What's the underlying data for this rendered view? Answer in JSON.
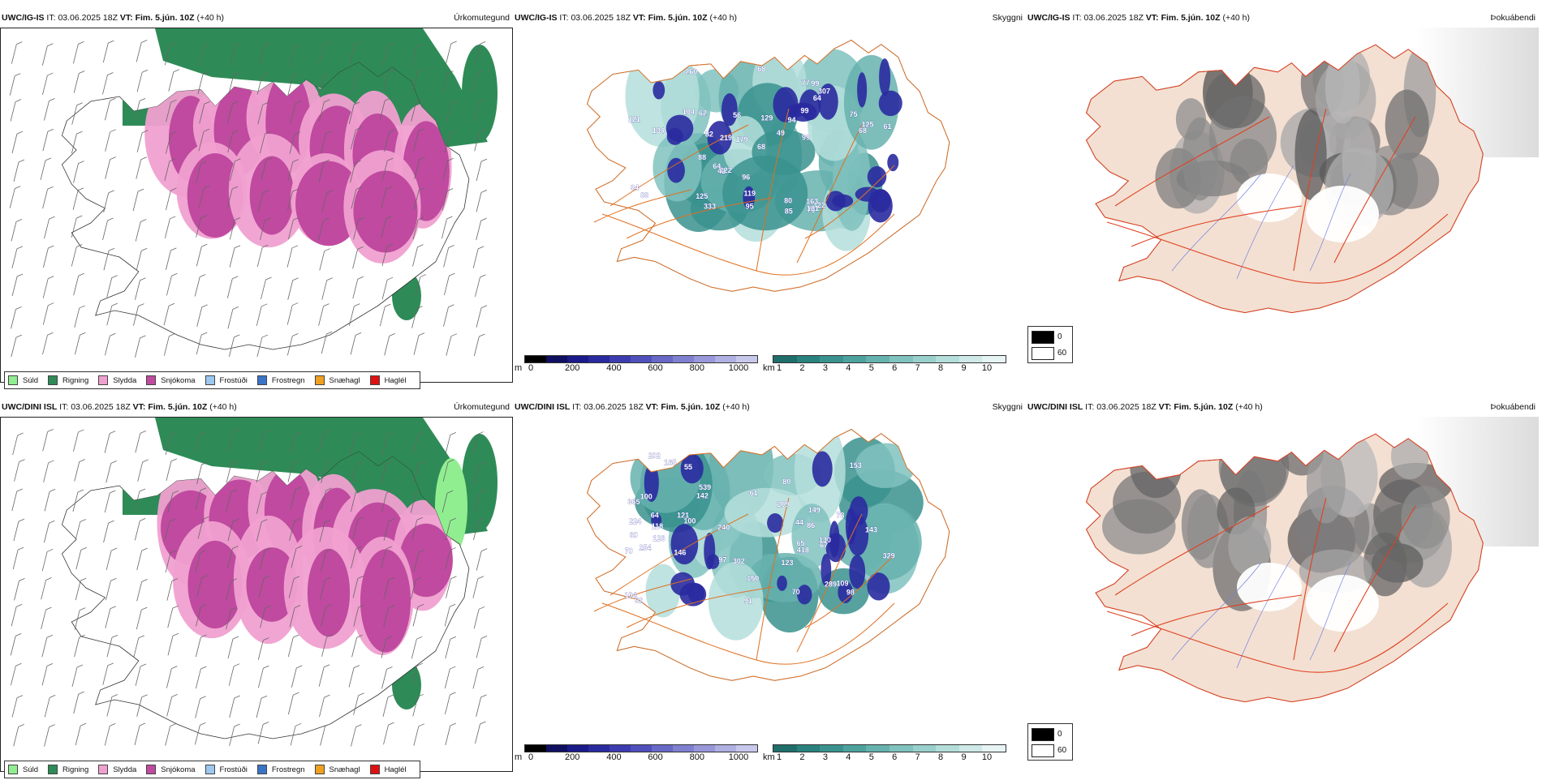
{
  "rows": [
    {
      "model": "UWC/IG-IS",
      "it_label": "IT:",
      "it": "03.06.2025 18Z",
      "vt_label": "VT:",
      "vt": "Fim. 5.jún. 10Z",
      "lead": "(+40 h)",
      "precip_title": "Úrkomutegund",
      "vis_title": "Skyggni",
      "fog_title": "Þokuábendi",
      "vis_labels": [
        "88",
        "62",
        "104",
        "96",
        "99",
        "80",
        "64",
        "64",
        "61",
        "56",
        "129",
        "77",
        "68",
        "49",
        "121",
        "119",
        "75",
        "219",
        "95",
        "99",
        "84",
        "260",
        "122",
        "42",
        "134",
        "125",
        "99",
        "179",
        "307",
        "82",
        "68",
        "83",
        "85",
        "163",
        "94",
        "125",
        "333",
        "122",
        "68",
        "79",
        "181"
      ]
    },
    {
      "model": "UWC/DINI ISL",
      "it_label": "IT:",
      "it": "03.06.2025 18Z",
      "vt_label": "VT:",
      "vt": "Fim. 5.jún. 10Z",
      "lead": "(+40 h)",
      "precip_title": "Úrkomutegund",
      "vis_title": "Skyggni",
      "fog_title": "Þokuábendi",
      "vis_labels": [
        "224",
        "165",
        "149",
        "150",
        "123",
        "142",
        "100",
        "78",
        "67",
        "65",
        "64",
        "302",
        "254",
        "153",
        "70",
        "109",
        "97",
        "130",
        "146",
        "329",
        "92",
        "109",
        "365",
        "143",
        "539",
        "98",
        "44",
        "418",
        "289",
        "80",
        "104",
        "118",
        "202",
        "86",
        "55",
        "61",
        "60",
        "91",
        "100",
        "240",
        "126",
        "121",
        "70"
      ]
    }
  ],
  "precip_legend": [
    {
      "label": "Súld",
      "color": "#90ee90"
    },
    {
      "label": "Rigning",
      "color": "#2e8b57"
    },
    {
      "label": "Slydda",
      "color": "#f0a0d0"
    },
    {
      "label": "Snjókoma",
      "color": "#c04aa0"
    },
    {
      "label": "Frostúði",
      "color": "#9cc8f0"
    },
    {
      "label": "Frostregn",
      "color": "#3a74c8"
    },
    {
      "label": "Snæhagl",
      "color": "#f0a020"
    },
    {
      "label": "Haglél",
      "color": "#e01010"
    }
  ],
  "height_bar": {
    "unit": "m",
    "ticks": [
      "0",
      "200",
      "400",
      "600",
      "800",
      "1000"
    ],
    "colors": [
      "#000000",
      "#101060",
      "#1a1a8a",
      "#2a2aa0",
      "#3c3cb0",
      "#5050bc",
      "#6868c6",
      "#8080d0",
      "#9898da",
      "#b0b0e2",
      "#c8c8ec"
    ]
  },
  "vis_bar": {
    "unit": "km",
    "ticks": [
      "1",
      "2",
      "3",
      "4",
      "5",
      "6",
      "7",
      "8",
      "9",
      "10"
    ],
    "colors": [
      "#1f6e6a",
      "#2a827e",
      "#3a928e",
      "#4ea29e",
      "#66b2ae",
      "#80c2be",
      "#9ad0cc",
      "#b4deda",
      "#cee9e7",
      "#e6f4f3"
    ]
  },
  "fog_legend": [
    {
      "label": "0",
      "color": "#000000"
    },
    {
      "label": "60",
      "color": "#ffffff"
    }
  ],
  "palette": {
    "rain": "#2e8b57",
    "snow": "#c04aa0",
    "sleet": "#f0a0d0",
    "drizzle": "#90ee90",
    "road": "#e07020",
    "land_fog": "#f3e0d2",
    "road_fog": "#e04020",
    "river": "#7080e0"
  }
}
